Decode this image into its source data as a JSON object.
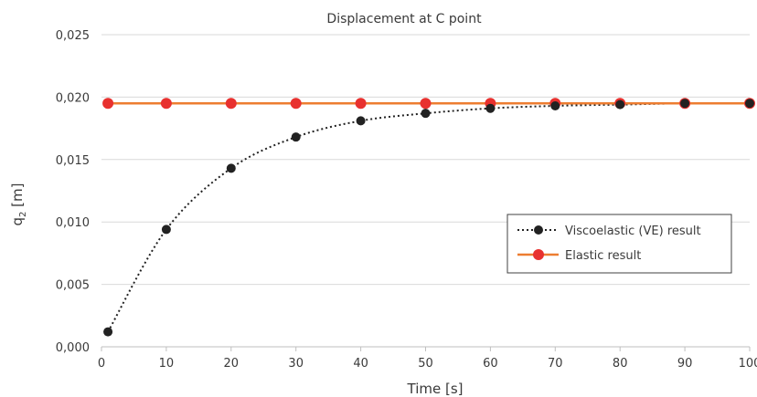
{
  "chart_data": {
    "type": "line",
    "title": "Displacement at C point",
    "xlabel": "Time [s]",
    "ylabel": "q",
    "ylabel_subscript": "2",
    "ylabel_unit": " [m]",
    "xlim": [
      0,
      100
    ],
    "ylim": [
      0,
      0.025
    ],
    "x_ticks": [
      0,
      10,
      20,
      30,
      40,
      50,
      60,
      70,
      80,
      90,
      100
    ],
    "x_tick_labels": [
      "0",
      "10",
      "20",
      "30",
      "40",
      "50",
      "60",
      "70",
      "80",
      "90",
      "100"
    ],
    "y_ticks": [
      0,
      0.005,
      0.01,
      0.015,
      0.02,
      0.025
    ],
    "y_tick_labels": [
      "0,000",
      "0,005",
      "0,010",
      "0,015",
      "0,020",
      "0,025"
    ],
    "grid": "horizontal",
    "legend_position": "right",
    "series": [
      {
        "name": "Viscoelastic (VE) result",
        "style": "dotted-line-with-markers",
        "color": "#222222",
        "x": [
          1,
          10,
          20,
          30,
          40,
          50,
          60,
          70,
          80,
          90,
          100
        ],
        "y": [
          0.0012,
          0.0094,
          0.0143,
          0.0168,
          0.0181,
          0.0187,
          0.0191,
          0.0193,
          0.0194,
          0.0195,
          0.0195
        ]
      },
      {
        "name": "Elastic result",
        "style": "solid-line-with-markers",
        "color": "#ed7d31",
        "marker_color": "#e8312f",
        "x": [
          1,
          10,
          20,
          30,
          40,
          50,
          60,
          70,
          80,
          90,
          100
        ],
        "y": [
          0.0195,
          0.0195,
          0.0195,
          0.0195,
          0.0195,
          0.0195,
          0.0195,
          0.0195,
          0.0195,
          0.0195,
          0.0195
        ]
      }
    ]
  }
}
